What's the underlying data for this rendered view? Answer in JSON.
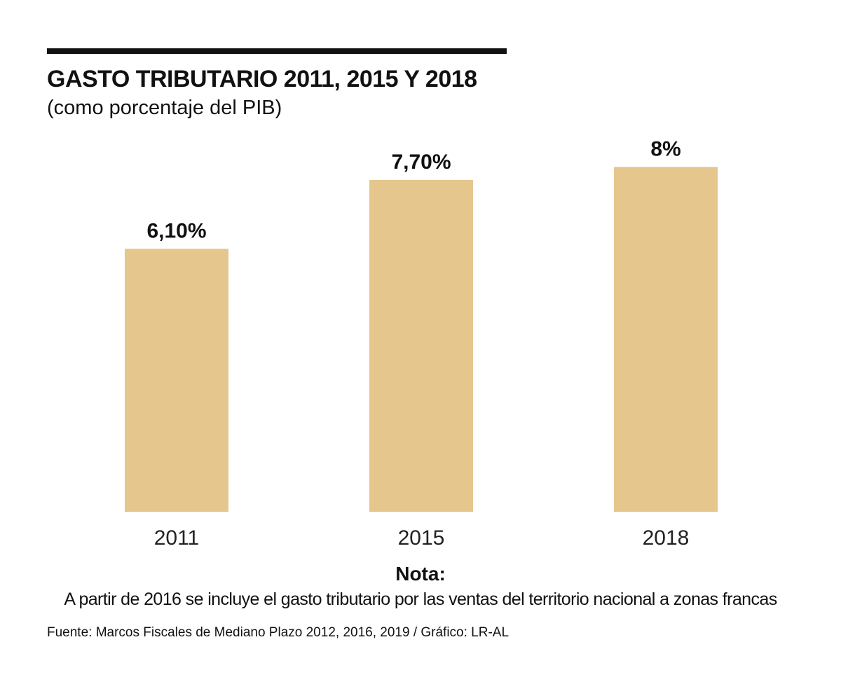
{
  "header": {
    "title": "GASTO TRIBUTARIO 2011, 2015 Y 2018",
    "subtitle": "(como porcentaje del PIB)"
  },
  "note": {
    "title": "Nota:",
    "text": "A partir de 2016 se incluye el gasto tributario por las ventas del territorio nacional a zonas francas"
  },
  "source": "Fuente: Marcos Fiscales de Mediano Plazo 2012, 2016, 2019 / Gráfico: LR-AL",
  "colors": {
    "bar": "#E5C68D",
    "text": "#111111",
    "rule": "#111111"
  },
  "chart_data": {
    "type": "bar",
    "title": "GASTO TRIBUTARIO 2011, 2015 Y 2018",
    "subtitle": "(como porcentaje del PIB)",
    "categories": [
      "2011",
      "2015",
      "2018"
    ],
    "values": [
      6.1,
      7.7,
      8.0
    ],
    "value_labels": [
      "6,10%",
      "7,70%",
      "8%"
    ],
    "xlabel": "",
    "ylabel": "",
    "ylim": [
      0,
      8.3
    ],
    "grid": false,
    "legend": "none"
  }
}
